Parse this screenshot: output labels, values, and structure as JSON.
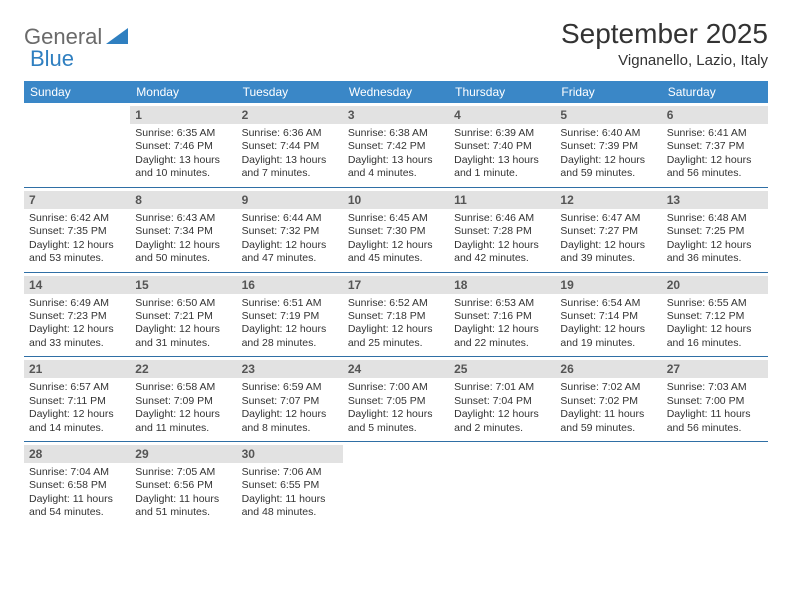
{
  "logo": {
    "text1": "General",
    "text2": "Blue",
    "color1": "#6a6a6a",
    "color2": "#2f7fc0"
  },
  "title": "September 2025",
  "location": "Vignanello, Lazio, Italy",
  "styling": {
    "header_bg": "#3a87c7",
    "header_text": "#ffffff",
    "daynum_bg": "#e2e2e2",
    "daynum_text": "#555555",
    "week_border": "#2f6fa5",
    "body_text": "#333333",
    "title_fontsize": 28,
    "location_fontsize": 15,
    "header_fontsize": 12,
    "info_fontsize": 10.5
  },
  "weekdays": [
    "Sunday",
    "Monday",
    "Tuesday",
    "Wednesday",
    "Thursday",
    "Friday",
    "Saturday"
  ],
  "weeks": [
    [
      {
        "day": "",
        "lines": [
          "",
          "",
          "",
          ""
        ]
      },
      {
        "day": "1",
        "lines": [
          "Sunrise: 6:35 AM",
          "Sunset: 7:46 PM",
          "Daylight: 13 hours",
          "and 10 minutes."
        ]
      },
      {
        "day": "2",
        "lines": [
          "Sunrise: 6:36 AM",
          "Sunset: 7:44 PM",
          "Daylight: 13 hours",
          "and 7 minutes."
        ]
      },
      {
        "day": "3",
        "lines": [
          "Sunrise: 6:38 AM",
          "Sunset: 7:42 PM",
          "Daylight: 13 hours",
          "and 4 minutes."
        ]
      },
      {
        "day": "4",
        "lines": [
          "Sunrise: 6:39 AM",
          "Sunset: 7:40 PM",
          "Daylight: 13 hours",
          "and 1 minute."
        ]
      },
      {
        "day": "5",
        "lines": [
          "Sunrise: 6:40 AM",
          "Sunset: 7:39 PM",
          "Daylight: 12 hours",
          "and 59 minutes."
        ]
      },
      {
        "day": "6",
        "lines": [
          "Sunrise: 6:41 AM",
          "Sunset: 7:37 PM",
          "Daylight: 12 hours",
          "and 56 minutes."
        ]
      }
    ],
    [
      {
        "day": "7",
        "lines": [
          "Sunrise: 6:42 AM",
          "Sunset: 7:35 PM",
          "Daylight: 12 hours",
          "and 53 minutes."
        ]
      },
      {
        "day": "8",
        "lines": [
          "Sunrise: 6:43 AM",
          "Sunset: 7:34 PM",
          "Daylight: 12 hours",
          "and 50 minutes."
        ]
      },
      {
        "day": "9",
        "lines": [
          "Sunrise: 6:44 AM",
          "Sunset: 7:32 PM",
          "Daylight: 12 hours",
          "and 47 minutes."
        ]
      },
      {
        "day": "10",
        "lines": [
          "Sunrise: 6:45 AM",
          "Sunset: 7:30 PM",
          "Daylight: 12 hours",
          "and 45 minutes."
        ]
      },
      {
        "day": "11",
        "lines": [
          "Sunrise: 6:46 AM",
          "Sunset: 7:28 PM",
          "Daylight: 12 hours",
          "and 42 minutes."
        ]
      },
      {
        "day": "12",
        "lines": [
          "Sunrise: 6:47 AM",
          "Sunset: 7:27 PM",
          "Daylight: 12 hours",
          "and 39 minutes."
        ]
      },
      {
        "day": "13",
        "lines": [
          "Sunrise: 6:48 AM",
          "Sunset: 7:25 PM",
          "Daylight: 12 hours",
          "and 36 minutes."
        ]
      }
    ],
    [
      {
        "day": "14",
        "lines": [
          "Sunrise: 6:49 AM",
          "Sunset: 7:23 PM",
          "Daylight: 12 hours",
          "and 33 minutes."
        ]
      },
      {
        "day": "15",
        "lines": [
          "Sunrise: 6:50 AM",
          "Sunset: 7:21 PM",
          "Daylight: 12 hours",
          "and 31 minutes."
        ]
      },
      {
        "day": "16",
        "lines": [
          "Sunrise: 6:51 AM",
          "Sunset: 7:19 PM",
          "Daylight: 12 hours",
          "and 28 minutes."
        ]
      },
      {
        "day": "17",
        "lines": [
          "Sunrise: 6:52 AM",
          "Sunset: 7:18 PM",
          "Daylight: 12 hours",
          "and 25 minutes."
        ]
      },
      {
        "day": "18",
        "lines": [
          "Sunrise: 6:53 AM",
          "Sunset: 7:16 PM",
          "Daylight: 12 hours",
          "and 22 minutes."
        ]
      },
      {
        "day": "19",
        "lines": [
          "Sunrise: 6:54 AM",
          "Sunset: 7:14 PM",
          "Daylight: 12 hours",
          "and 19 minutes."
        ]
      },
      {
        "day": "20",
        "lines": [
          "Sunrise: 6:55 AM",
          "Sunset: 7:12 PM",
          "Daylight: 12 hours",
          "and 16 minutes."
        ]
      }
    ],
    [
      {
        "day": "21",
        "lines": [
          "Sunrise: 6:57 AM",
          "Sunset: 7:11 PM",
          "Daylight: 12 hours",
          "and 14 minutes."
        ]
      },
      {
        "day": "22",
        "lines": [
          "Sunrise: 6:58 AM",
          "Sunset: 7:09 PM",
          "Daylight: 12 hours",
          "and 11 minutes."
        ]
      },
      {
        "day": "23",
        "lines": [
          "Sunrise: 6:59 AM",
          "Sunset: 7:07 PM",
          "Daylight: 12 hours",
          "and 8 minutes."
        ]
      },
      {
        "day": "24",
        "lines": [
          "Sunrise: 7:00 AM",
          "Sunset: 7:05 PM",
          "Daylight: 12 hours",
          "and 5 minutes."
        ]
      },
      {
        "day": "25",
        "lines": [
          "Sunrise: 7:01 AM",
          "Sunset: 7:04 PM",
          "Daylight: 12 hours",
          "and 2 minutes."
        ]
      },
      {
        "day": "26",
        "lines": [
          "Sunrise: 7:02 AM",
          "Sunset: 7:02 PM",
          "Daylight: 11 hours",
          "and 59 minutes."
        ]
      },
      {
        "day": "27",
        "lines": [
          "Sunrise: 7:03 AM",
          "Sunset: 7:00 PM",
          "Daylight: 11 hours",
          "and 56 minutes."
        ]
      }
    ],
    [
      {
        "day": "28",
        "lines": [
          "Sunrise: 7:04 AM",
          "Sunset: 6:58 PM",
          "Daylight: 11 hours",
          "and 54 minutes."
        ]
      },
      {
        "day": "29",
        "lines": [
          "Sunrise: 7:05 AM",
          "Sunset: 6:56 PM",
          "Daylight: 11 hours",
          "and 51 minutes."
        ]
      },
      {
        "day": "30",
        "lines": [
          "Sunrise: 7:06 AM",
          "Sunset: 6:55 PM",
          "Daylight: 11 hours",
          "and 48 minutes."
        ]
      },
      {
        "day": "",
        "lines": [
          "",
          "",
          "",
          ""
        ]
      },
      {
        "day": "",
        "lines": [
          "",
          "",
          "",
          ""
        ]
      },
      {
        "day": "",
        "lines": [
          "",
          "",
          "",
          ""
        ]
      },
      {
        "day": "",
        "lines": [
          "",
          "",
          "",
          ""
        ]
      }
    ]
  ]
}
